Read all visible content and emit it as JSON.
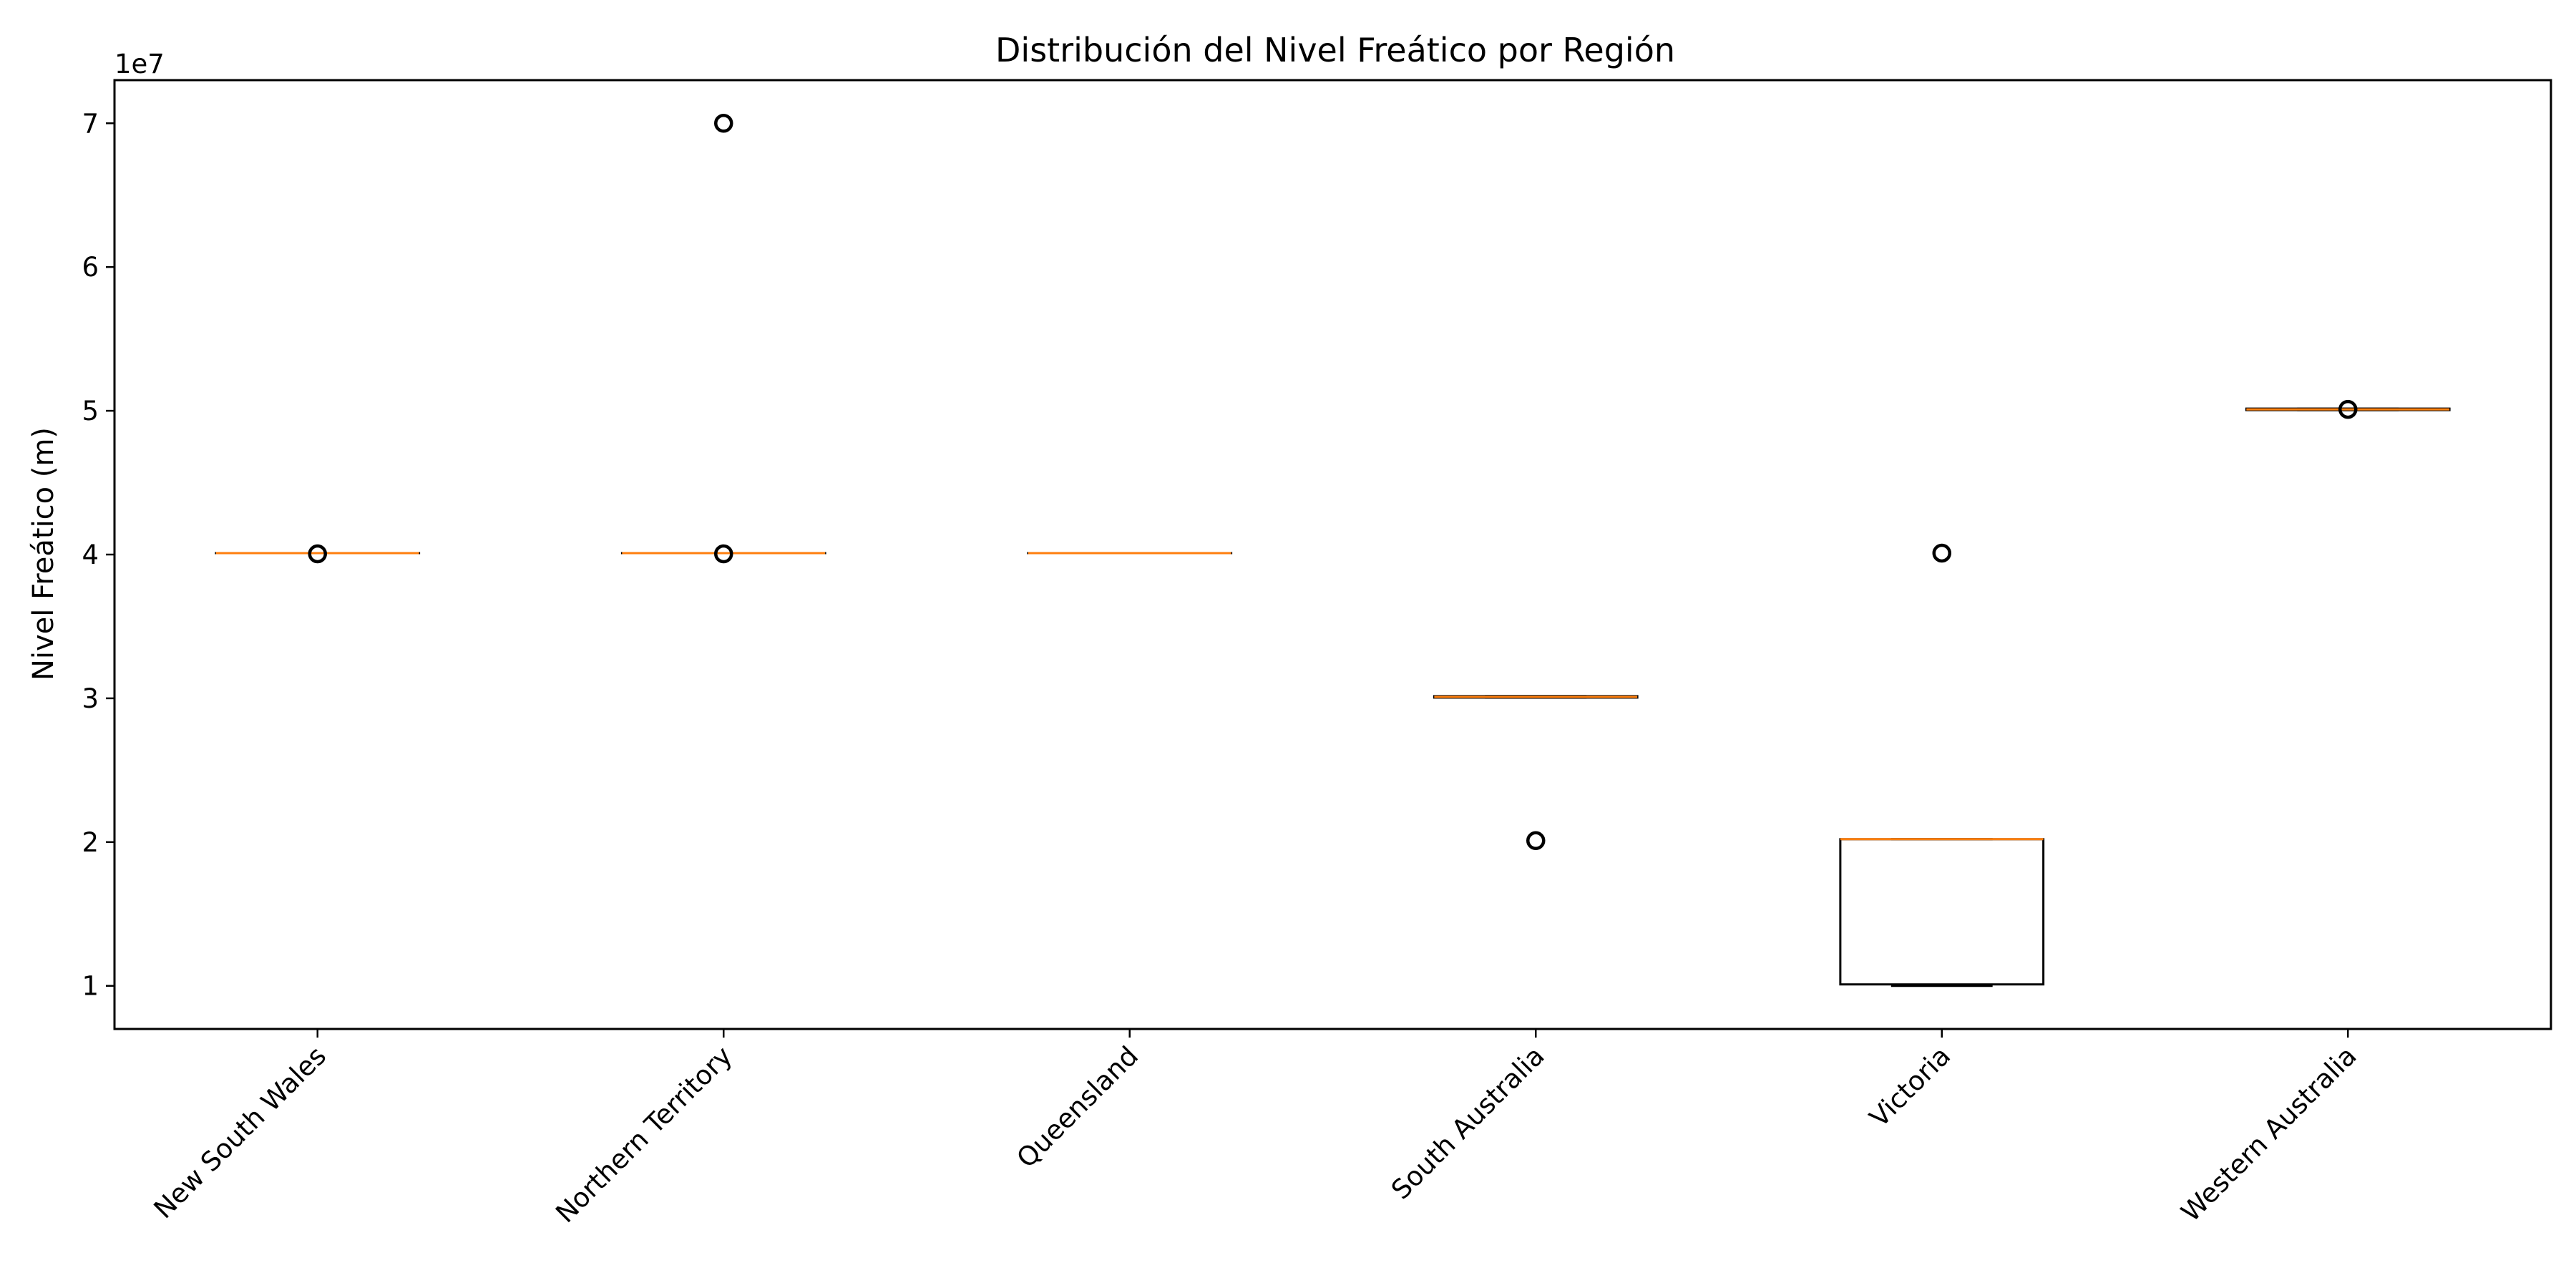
{
  "chart_data": {
    "type": "box",
    "title": "Distribución del Nivel Freático por Región",
    "xlabel": "",
    "ylabel": "Nivel Freático (m)",
    "y_offset_label": "1e7",
    "y_multiplier": 10000000,
    "ylim": [
      7000000,
      73000000
    ],
    "yticks": [
      1,
      2,
      3,
      4,
      5,
      6,
      7
    ],
    "xtick_rotation_deg": 45,
    "grid": false,
    "colors": {
      "box": "#000000",
      "median": "#ff7f0e",
      "flier": "#000000"
    },
    "categories": [
      "New South Wales",
      "Northern Territory",
      "Queensland",
      "South Australia",
      "Victoria",
      "Western Australia"
    ],
    "boxes": [
      {
        "q1": 40100000,
        "median": 40100000,
        "q3": 40100000,
        "whisker_low": 40100000,
        "whisker_high": 40100000,
        "outliers": [
          40050000
        ]
      },
      {
        "q1": 40100000,
        "median": 40100000,
        "q3": 40100000,
        "whisker_low": 40100000,
        "whisker_high": 40100000,
        "outliers": [
          40050000,
          70000000
        ]
      },
      {
        "q1": 40100000,
        "median": 40100000,
        "q3": 40100000,
        "whisker_low": 40100000,
        "whisker_high": 40100000,
        "outliers": []
      },
      {
        "q1": 30050000,
        "median": 30100000,
        "q3": 30150000,
        "whisker_low": 30050000,
        "whisker_high": 30150000,
        "outliers": [
          20100000
        ]
      },
      {
        "q1": 10100000,
        "median": 20200000,
        "q3": 20200000,
        "whisker_low": 10000000,
        "whisker_high": 20200000,
        "outliers": [
          40100000
        ]
      },
      {
        "q1": 50050000,
        "median": 50100000,
        "q3": 50150000,
        "whisker_low": 50050000,
        "whisker_high": 50150000,
        "outliers": [
          50100000
        ]
      }
    ]
  }
}
